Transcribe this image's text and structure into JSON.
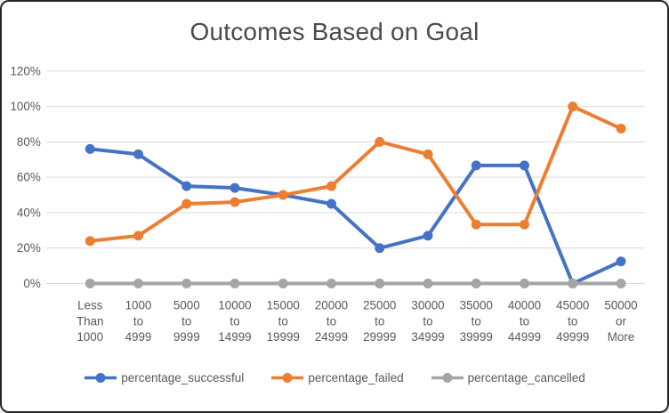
{
  "window": {
    "background": "#ffffff",
    "border_color": "#262626"
  },
  "chart_data": {
    "type": "line",
    "title": "Outcomes Based on Goal",
    "xlabel": "",
    "ylabel": "",
    "grid": true,
    "legend_position": "bottom",
    "gridline_color": "#d9d9d9",
    "axis_text_color": "#595959",
    "title_color": "#4a4a4a",
    "y_axis": {
      "min": 0,
      "max": 120,
      "step": 20,
      "tick_labels": [
        "120%",
        "100%",
        "80%",
        "60%",
        "40%",
        "20%",
        "0%"
      ]
    },
    "categories": [
      [
        "Less",
        "Than",
        "1000"
      ],
      [
        "1000",
        "to",
        "4999"
      ],
      [
        "5000",
        "to",
        "9999"
      ],
      [
        "10000",
        "to",
        "14999"
      ],
      [
        "15000",
        "to",
        "19999"
      ],
      [
        "20000",
        "to",
        "24999"
      ],
      [
        "25000",
        "to",
        "29999"
      ],
      [
        "30000",
        "to",
        "34999"
      ],
      [
        "35000",
        "to",
        "39999"
      ],
      [
        "40000",
        "to",
        "44999"
      ],
      [
        "45000",
        "to",
        "49999"
      ],
      [
        "50000",
        "or",
        "More"
      ]
    ],
    "series": [
      {
        "name": "percentage_successful",
        "color": "#4472C4",
        "values": [
          76,
          73,
          55,
          54,
          50,
          45,
          20,
          27,
          66.7,
          66.7,
          0,
          12.5
        ]
      },
      {
        "name": "percentage_failed",
        "color": "#ED7D31",
        "values": [
          24,
          27,
          45,
          46,
          50,
          55,
          80,
          73,
          33.3,
          33.3,
          100,
          87.5
        ]
      },
      {
        "name": "percentage_cancelled",
        "color": "#A5A5A5",
        "values": [
          0,
          0,
          0,
          0,
          0,
          0,
          0,
          0,
          0,
          0,
          0,
          0
        ]
      }
    ]
  }
}
